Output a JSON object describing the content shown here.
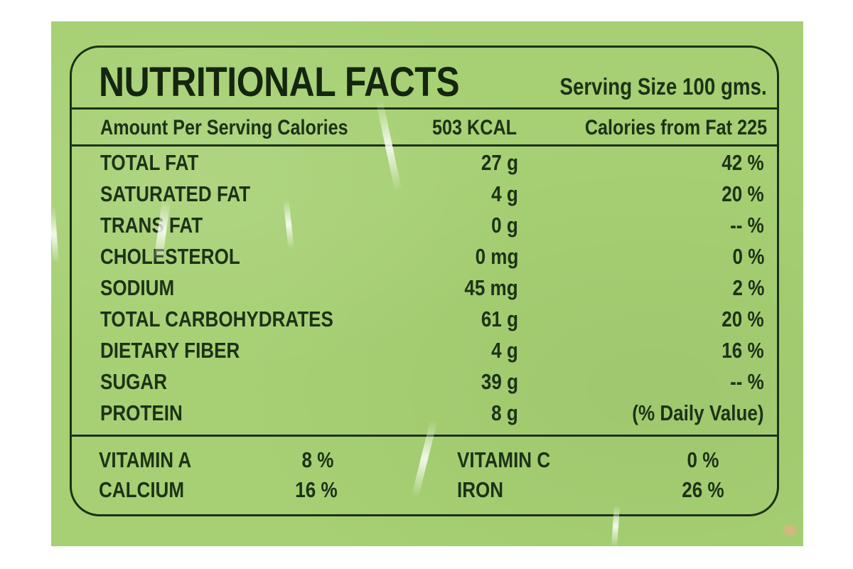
{
  "label": {
    "title": "NUTRITIONAL FACTS",
    "serving_size": "Serving Size 100 gms.",
    "calories_row": {
      "label": "Amount Per Serving Calories",
      "value": "503 KCAL",
      "from_fat": "Calories from Fat 225"
    },
    "nutrients": [
      {
        "name": "TOTAL FAT",
        "amount": "27 g",
        "dv": "42 %"
      },
      {
        "name": "SATURATED FAT",
        "amount": "4 g",
        "dv": "20 %"
      },
      {
        "name": "TRANS FAT",
        "amount": "0 g",
        "dv": "-- %"
      },
      {
        "name": "CHOLESTEROL",
        "amount": "0 mg",
        "dv": "0 %"
      },
      {
        "name": "SODIUM",
        "amount": "45 mg",
        "dv": "2 %"
      },
      {
        "name": "TOTAL CARBOHYDRATES",
        "amount": "61 g",
        "dv": "20 %"
      },
      {
        "name": "DIETARY FIBER",
        "amount": "4 g",
        "dv": "16 %"
      },
      {
        "name": "SUGAR",
        "amount": "39 g",
        "dv": "-- %"
      },
      {
        "name": "PROTEIN",
        "amount": "8 g",
        "dv": "(% Daily Value)"
      }
    ],
    "vitamins": [
      {
        "name": "VITAMIN A",
        "value": "8 %"
      },
      {
        "name": "VITAMIN C",
        "value": "0 %"
      },
      {
        "name": "CALCIUM",
        "value": "16 %"
      },
      {
        "name": "IRON",
        "value": "26 %"
      }
    ]
  },
  "colors": {
    "background": "#a6d073",
    "ink": "#1c3216"
  }
}
